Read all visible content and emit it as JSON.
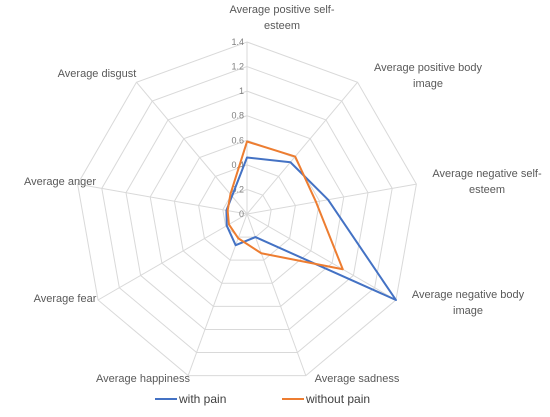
{
  "chart_data": {
    "type": "radar",
    "title": "",
    "axes": [
      "Average positive self-esteem",
      "Average positive body image",
      "Average negative self-esteem",
      "Average negative body image",
      "Average sadness",
      "Average happiness",
      "Average fear",
      "Average anger",
      "Average disgust"
    ],
    "axis_label_lines": [
      [
        "Average positive self-",
        "esteem"
      ],
      [
        "Average positive body",
        "image"
      ],
      [
        "Average negative self-",
        "esteem"
      ],
      [
        "Average negative body",
        "image"
      ],
      [
        "Average sadness"
      ],
      [
        "Average happiness"
      ],
      [
        "Average fear"
      ],
      [
        "Average anger"
      ],
      [
        "Average disgust"
      ]
    ],
    "radial_ticks": [
      "0",
      "0.2",
      "0.4",
      "0.6",
      "0.8",
      "1",
      "1.2",
      "1.4"
    ],
    "rlim": [
      0,
      1.4
    ],
    "grid": true,
    "legend_position": "bottom",
    "series": [
      {
        "name": "with pain",
        "color": "#4472C4",
        "values": [
          0.46,
          0.55,
          0.67,
          1.4,
          0.2,
          0.27,
          0.19,
          0.17,
          0.19
        ]
      },
      {
        "name": "without pain",
        "color": "#ED7D31",
        "values": [
          0.59,
          0.61,
          0.57,
          0.9,
          0.34,
          0.21,
          0.17,
          0.16,
          0.21
        ]
      }
    ],
    "grid_color": "#d9d9d9"
  }
}
